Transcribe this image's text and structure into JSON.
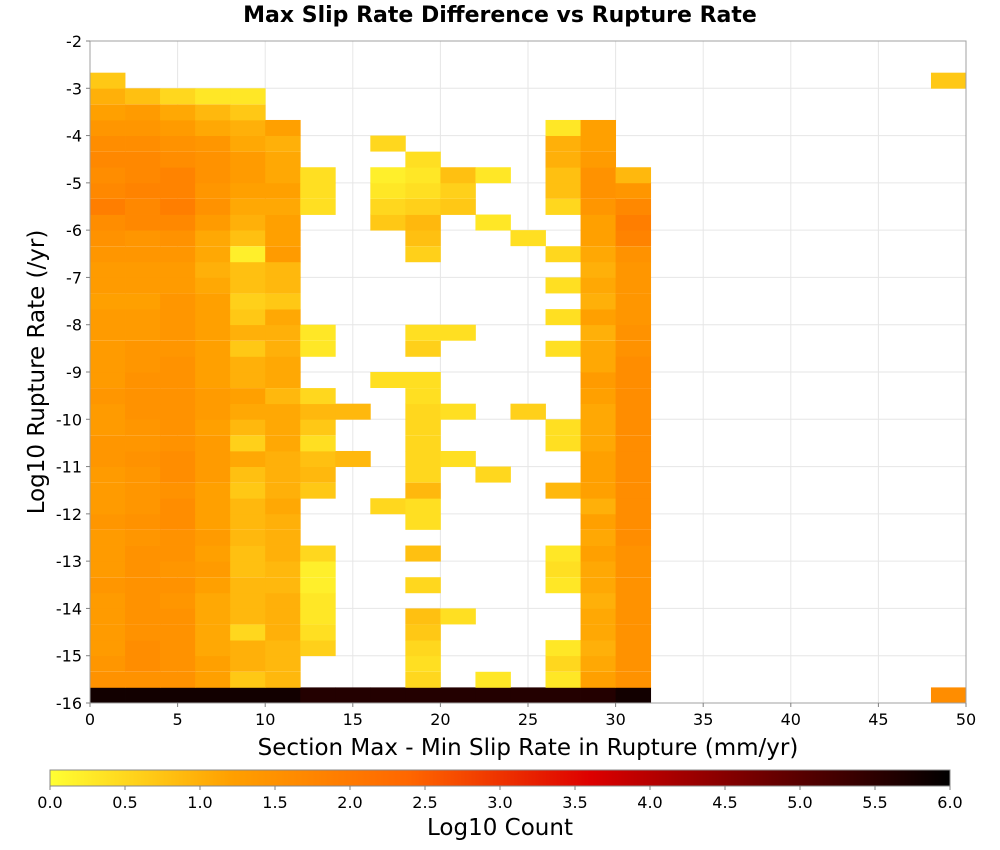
{
  "chart_data": {
    "type": "heatmap",
    "title": "Max Slip Rate Difference vs Rupture Rate",
    "xlabel": "Section Max - Min Slip Rate in Rupture (mm/yr)",
    "ylabel": "Log10 Rupture Rate (/yr)",
    "xlim": [
      0,
      50
    ],
    "ylim": [
      -16,
      -2
    ],
    "x_ticks": [
      "0",
      "5",
      "10",
      "15",
      "20",
      "25",
      "30",
      "35",
      "40",
      "45",
      "50"
    ],
    "y_ticks": [
      "-2",
      "-3",
      "-4",
      "-5",
      "-6",
      "-7",
      "-8",
      "-9",
      "-10",
      "-11",
      "-12",
      "-13",
      "-14",
      "-15",
      "-16"
    ],
    "grid": true,
    "bin_width_x": 2,
    "bin_height_y": 0.33,
    "x_bin_starts": [
      0,
      2,
      4,
      6,
      8,
      10,
      12,
      14,
      16,
      18,
      20,
      22,
      24,
      26,
      28,
      30,
      32,
      34,
      36,
      38,
      40,
      42,
      44,
      46,
      48
    ],
    "y_bin_starts": [
      -16,
      -15.67,
      -15.33,
      -15,
      -14.67,
      -14.33,
      -14,
      -13.67,
      -13.33,
      -13,
      -12.67,
      -12.33,
      -12,
      -11.67,
      -11.33,
      -11,
      -10.67,
      -10.33,
      -10,
      -9.67,
      -9.33,
      -9,
      -8.67,
      -8.33,
      -8,
      -7.67,
      -7.33,
      -7,
      -6.67,
      -6.33,
      -6,
      -5.67,
      -5.33,
      -5,
      -4.67,
      -4.33,
      -4,
      -3.67,
      -3.33,
      -3
    ],
    "counts_log10": [
      [
        5.8,
        5.8,
        5.8,
        5.8,
        5.8,
        5.8,
        5.6,
        5.6,
        5.6,
        5.6,
        5.6,
        5.6,
        5.6,
        5.6,
        5.6,
        5.8,
        null,
        null,
        null,
        null,
        null,
        null,
        null,
        null,
        1.6
      ],
      [
        1.5,
        1.5,
        1.5,
        1.2,
        0.7,
        0.9,
        null,
        null,
        null,
        0.5,
        null,
        0.3,
        null,
        0.3,
        1.2,
        1.5,
        null,
        null,
        null,
        null,
        null,
        null,
        null,
        null,
        null
      ],
      [
        1.4,
        1.6,
        1.5,
        1.2,
        1.0,
        0.9,
        null,
        null,
        null,
        0.4,
        null,
        null,
        null,
        0.5,
        1.1,
        1.5,
        null,
        null,
        null,
        null,
        null,
        null,
        null,
        null,
        null
      ],
      [
        1.3,
        1.6,
        1.5,
        1.1,
        1.0,
        0.9,
        0.6,
        null,
        null,
        0.5,
        null,
        null,
        null,
        0.3,
        1.0,
        1.5,
        null,
        null,
        null,
        null,
        null,
        null,
        null,
        null,
        null
      ],
      [
        1.3,
        1.5,
        1.5,
        1.1,
        0.5,
        1.0,
        0.4,
        null,
        null,
        0.7,
        null,
        null,
        null,
        null,
        1.1,
        1.5,
        null,
        null,
        null,
        null,
        null,
        null,
        null,
        null,
        null
      ],
      [
        1.3,
        1.5,
        1.5,
        1.1,
        0.9,
        1.0,
        0.3,
        null,
        null,
        0.8,
        0.4,
        null,
        null,
        null,
        1.1,
        1.5,
        null,
        null,
        null,
        null,
        null,
        null,
        null,
        null,
        null
      ],
      [
        1.3,
        1.5,
        1.4,
        1.1,
        0.9,
        1.0,
        0.3,
        null,
        null,
        null,
        null,
        null,
        null,
        null,
        1.0,
        1.5,
        null,
        null,
        null,
        null,
        null,
        null,
        null,
        null,
        null
      ],
      [
        1.4,
        1.5,
        1.5,
        1.2,
        0.9,
        0.9,
        0.2,
        null,
        null,
        0.5,
        null,
        null,
        null,
        0.3,
        1.1,
        1.5,
        null,
        null,
        null,
        null,
        null,
        null,
        null,
        null,
        null
      ],
      [
        1.3,
        1.5,
        1.4,
        1.3,
        0.8,
        0.9,
        0.2,
        null,
        null,
        null,
        null,
        null,
        null,
        0.4,
        1.1,
        1.5,
        null,
        null,
        null,
        null,
        null,
        null,
        null,
        null,
        null
      ],
      [
        1.3,
        1.5,
        1.5,
        1.2,
        0.8,
        1.0,
        0.5,
        null,
        null,
        0.8,
        null,
        null,
        null,
        0.3,
        1.2,
        1.5,
        null,
        null,
        null,
        null,
        null,
        null,
        null,
        null,
        null
      ],
      [
        1.3,
        1.4,
        1.5,
        1.3,
        0.9,
        1.0,
        null,
        null,
        null,
        null,
        null,
        null,
        null,
        null,
        1.1,
        1.6,
        null,
        null,
        null,
        null,
        null,
        null,
        null,
        null,
        null
      ],
      [
        1.4,
        1.5,
        1.6,
        1.2,
        0.9,
        1.0,
        null,
        null,
        null,
        0.4,
        null,
        null,
        null,
        null,
        1.2,
        1.6,
        null,
        null,
        null,
        null,
        null,
        null,
        null,
        null,
        null
      ],
      [
        1.3,
        1.4,
        1.6,
        1.2,
        0.9,
        1.1,
        null,
        null,
        0.5,
        0.4,
        null,
        null,
        null,
        null,
        1.0,
        1.6,
        null,
        null,
        null,
        null,
        null,
        null,
        null,
        null,
        null
      ],
      [
        1.3,
        1.4,
        1.5,
        1.2,
        0.7,
        1.0,
        0.7,
        null,
        null,
        0.9,
        null,
        null,
        null,
        0.9,
        1.2,
        1.6,
        null,
        null,
        null,
        null,
        null,
        null,
        null,
        null,
        null
      ],
      [
        1.3,
        1.4,
        1.6,
        1.3,
        0.8,
        1.0,
        0.9,
        null,
        null,
        0.5,
        null,
        0.5,
        null,
        null,
        1.2,
        1.6,
        null,
        null,
        null,
        null,
        null,
        null,
        null,
        null,
        null
      ],
      [
        1.4,
        1.5,
        1.6,
        1.3,
        1.1,
        1.0,
        0.8,
        0.9,
        null,
        0.5,
        0.4,
        null,
        null,
        null,
        1.2,
        1.6,
        null,
        null,
        null,
        null,
        null,
        null,
        null,
        null,
        null
      ],
      [
        1.4,
        1.4,
        1.5,
        1.3,
        0.6,
        1.1,
        0.4,
        null,
        null,
        0.5,
        null,
        null,
        null,
        0.4,
        1.1,
        1.6,
        null,
        null,
        null,
        null,
        null,
        null,
        null,
        null,
        null
      ],
      [
        1.3,
        1.4,
        1.5,
        1.2,
        0.9,
        1.1,
        0.7,
        null,
        null,
        0.5,
        null,
        null,
        null,
        0.4,
        1.1,
        1.6,
        null,
        null,
        null,
        null,
        null,
        null,
        null,
        null,
        null
      ],
      [
        1.3,
        1.5,
        1.5,
        1.3,
        1.1,
        1.1,
        0.9,
        0.9,
        null,
        0.5,
        0.4,
        null,
        0.6,
        null,
        1.1,
        1.6,
        null,
        null,
        null,
        null,
        null,
        null,
        null,
        null,
        null
      ],
      [
        1.4,
        1.5,
        1.5,
        1.3,
        1.2,
        0.9,
        0.5,
        null,
        null,
        0.4,
        null,
        null,
        null,
        null,
        1.2,
        1.6,
        null,
        null,
        null,
        null,
        null,
        null,
        null,
        null,
        null
      ],
      [
        1.3,
        1.5,
        1.5,
        1.2,
        1.0,
        1.1,
        null,
        null,
        0.4,
        0.4,
        null,
        null,
        null,
        null,
        1.3,
        1.6,
        null,
        null,
        null,
        null,
        null,
        null,
        null,
        null,
        null
      ],
      [
        1.3,
        1.4,
        1.5,
        1.2,
        1.0,
        1.1,
        null,
        null,
        null,
        null,
        null,
        null,
        null,
        null,
        1.1,
        1.6,
        null,
        null,
        null,
        null,
        null,
        null,
        null,
        null,
        null
      ],
      [
        1.3,
        1.4,
        1.4,
        1.2,
        0.7,
        1.0,
        0.3,
        null,
        null,
        0.6,
        null,
        null,
        null,
        0.4,
        1.1,
        1.5,
        null,
        null,
        null,
        null,
        null,
        null,
        null,
        null,
        null
      ],
      [
        1.3,
        1.3,
        1.4,
        1.2,
        1.0,
        1.0,
        0.3,
        null,
        null,
        0.4,
        0.4,
        null,
        null,
        null,
        1.0,
        1.5,
        null,
        null,
        null,
        null,
        null,
        null,
        null,
        null,
        null
      ],
      [
        1.3,
        1.3,
        1.4,
        1.2,
        0.7,
        1.1,
        null,
        null,
        null,
        null,
        null,
        null,
        null,
        0.4,
        1.2,
        1.4,
        null,
        null,
        null,
        null,
        null,
        null,
        null,
        null,
        null
      ],
      [
        1.2,
        1.2,
        1.4,
        1.2,
        0.6,
        0.7,
        null,
        null,
        null,
        null,
        null,
        null,
        null,
        null,
        1.0,
        1.4,
        null,
        null,
        null,
        null,
        null,
        null,
        null,
        null,
        null
      ],
      [
        1.3,
        1.3,
        1.3,
        1.1,
        0.8,
        0.9,
        null,
        null,
        null,
        null,
        null,
        null,
        null,
        0.4,
        1.1,
        1.4,
        null,
        null,
        null,
        null,
        null,
        null,
        null,
        null,
        null
      ],
      [
        1.3,
        1.3,
        1.3,
        1.0,
        0.8,
        0.9,
        null,
        null,
        null,
        null,
        null,
        null,
        null,
        null,
        1.0,
        1.4,
        null,
        null,
        null,
        null,
        null,
        null,
        null,
        null,
        null
      ],
      [
        1.4,
        1.4,
        1.4,
        1.1,
        0.2,
        1.3,
        null,
        null,
        null,
        0.6,
        null,
        null,
        null,
        0.5,
        1.1,
        1.5,
        null,
        null,
        null,
        null,
        null,
        null,
        null,
        null,
        null
      ],
      [
        1.5,
        1.4,
        1.5,
        1.1,
        0.8,
        1.2,
        null,
        null,
        null,
        0.8,
        null,
        null,
        0.4,
        null,
        1.2,
        1.8,
        null,
        null,
        null,
        null,
        null,
        null,
        null,
        null,
        null
      ],
      [
        1.6,
        1.7,
        1.7,
        1.3,
        1.0,
        1.2,
        null,
        null,
        0.7,
        0.9,
        null,
        0.3,
        null,
        null,
        1.2,
        1.9,
        null,
        null,
        null,
        null,
        null,
        null,
        null,
        null,
        null
      ],
      [
        1.9,
        1.7,
        1.9,
        1.5,
        1.1,
        1.1,
        0.4,
        null,
        0.5,
        0.6,
        0.7,
        null,
        null,
        0.5,
        1.4,
        1.7,
        null,
        null,
        null,
        null,
        null,
        null,
        null,
        null,
        null
      ],
      [
        1.7,
        1.8,
        1.8,
        1.4,
        1.2,
        1.2,
        0.4,
        null,
        0.3,
        0.4,
        0.6,
        null,
        null,
        0.8,
        1.5,
        1.4,
        null,
        null,
        null,
        null,
        null,
        null,
        null,
        null,
        null
      ],
      [
        1.6,
        1.7,
        1.8,
        1.5,
        1.3,
        1.1,
        0.4,
        null,
        0.2,
        0.3,
        0.8,
        0.3,
        null,
        0.8,
        1.5,
        0.9,
        null,
        null,
        null,
        null,
        null,
        null,
        null,
        null,
        null
      ],
      [
        1.7,
        1.7,
        1.6,
        1.5,
        1.3,
        1.1,
        null,
        null,
        null,
        0.4,
        null,
        null,
        null,
        1.0,
        1.3,
        null,
        null,
        null,
        null,
        null,
        null,
        null,
        null,
        null,
        null
      ],
      [
        1.6,
        1.6,
        1.5,
        1.4,
        1.1,
        1.0,
        null,
        null,
        0.5,
        null,
        null,
        null,
        null,
        1.0,
        1.2,
        null,
        null,
        null,
        null,
        null,
        null,
        null,
        null,
        null,
        null
      ],
      [
        1.4,
        1.4,
        1.3,
        1.1,
        1.0,
        1.2,
        null,
        null,
        null,
        null,
        null,
        null,
        null,
        0.3,
        1.2,
        null,
        null,
        null,
        null,
        null,
        null,
        null,
        null,
        null,
        null
      ],
      [
        1.2,
        1.3,
        1.1,
        0.9,
        0.7,
        null,
        null,
        null,
        null,
        null,
        null,
        null,
        null,
        null,
        null,
        null,
        null,
        null,
        null,
        null,
        null,
        null,
        null,
        null,
        null
      ],
      [
        1.0,
        0.8,
        0.5,
        0.3,
        0.3,
        null,
        null,
        null,
        null,
        null,
        null,
        null,
        null,
        null,
        null,
        null,
        null,
        null,
        null,
        null,
        null,
        null,
        null,
        null,
        null
      ],
      [
        0.7,
        null,
        null,
        null,
        null,
        null,
        null,
        null,
        null,
        null,
        null,
        null,
        null,
        null,
        null,
        null,
        null,
        null,
        null,
        null,
        null,
        null,
        null,
        null,
        0.7
      ]
    ],
    "colorbar": {
      "label": "Log10 Count",
      "range": [
        0,
        6
      ],
      "ticks": [
        "0.0",
        "0.5",
        "1.0",
        "1.5",
        "2.0",
        "2.5",
        "3.0",
        "3.5",
        "4.0",
        "4.5",
        "5.0",
        "5.5",
        "6.0"
      ],
      "colors": [
        "#ffff33",
        "#ffa000",
        "#ff6600",
        "#dd0000",
        "#6a0000",
        "#000000"
      ]
    }
  }
}
